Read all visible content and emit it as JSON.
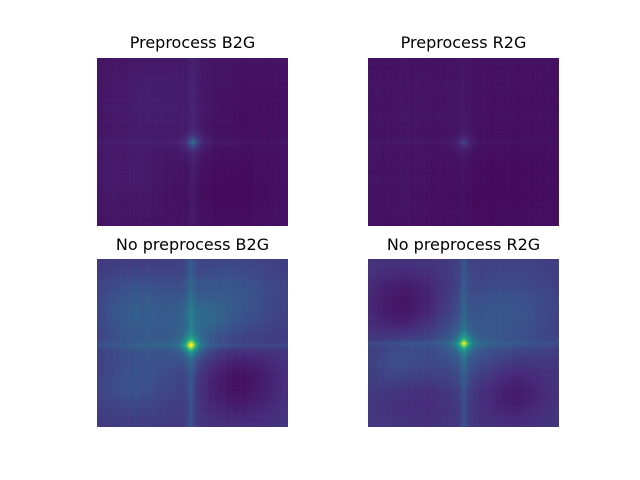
{
  "chart_data": [
    {
      "type": "heatmap",
      "title": "Preprocess B2G",
      "colormap": "viridis",
      "value_range": [
        0,
        1
      ],
      "background_level": 0.06,
      "center": [
        0.5,
        0.5
      ],
      "peak": 0.32,
      "cross_strength": 0.05,
      "blob_variation": 0.03,
      "axes_visible": false
    },
    {
      "type": "heatmap",
      "title": "Preprocess R2G",
      "colormap": "viridis",
      "value_range": [
        0,
        1
      ],
      "background_level": 0.05,
      "center": [
        0.5,
        0.5
      ],
      "peak": 0.18,
      "cross_strength": 0.03,
      "blob_variation": 0.02,
      "axes_visible": false
    },
    {
      "type": "heatmap",
      "title": "No preprocess B2G",
      "colormap": "viridis",
      "value_range": [
        0,
        1
      ],
      "background_level": 0.17,
      "center": [
        0.49,
        0.51
      ],
      "peak": 0.95,
      "cross_strength": 0.14,
      "blob_variation": 0.14,
      "axes_visible": false
    },
    {
      "type": "heatmap",
      "title": "No preprocess R2G",
      "colormap": "viridis",
      "value_range": [
        0,
        1
      ],
      "background_level": 0.17,
      "center": [
        0.5,
        0.5
      ],
      "peak": 0.8,
      "cross_strength": 0.14,
      "blob_variation": 0.13,
      "axes_visible": false
    }
  ]
}
